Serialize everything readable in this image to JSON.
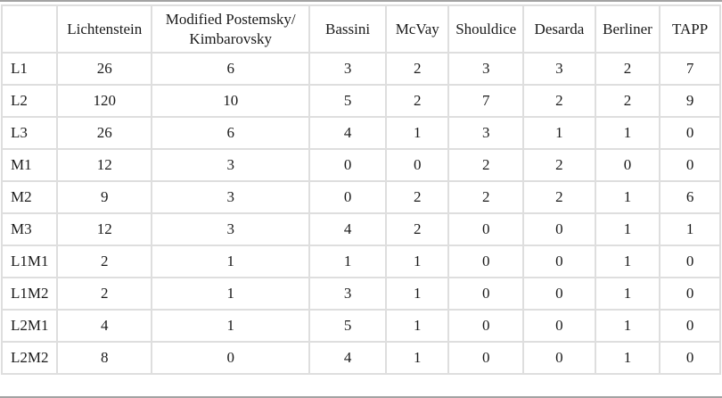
{
  "table": {
    "columns": [
      "",
      "Lichtenstein",
      "Modified Postemsky/ Kimbarovsky",
      "Bassini",
      "McVay",
      "Shouldice",
      "Desarda",
      "Berliner",
      "TAPP"
    ],
    "rows": [
      {
        "label": "L1",
        "values": [
          26,
          6,
          3,
          2,
          3,
          3,
          2,
          7
        ]
      },
      {
        "label": "L2",
        "values": [
          120,
          10,
          5,
          2,
          7,
          2,
          2,
          9
        ]
      },
      {
        "label": "L3",
        "values": [
          26,
          6,
          4,
          1,
          3,
          1,
          1,
          0
        ]
      },
      {
        "label": "M1",
        "values": [
          12,
          3,
          0,
          0,
          2,
          2,
          0,
          0
        ]
      },
      {
        "label": "M2",
        "values": [
          9,
          3,
          0,
          2,
          2,
          2,
          1,
          6
        ]
      },
      {
        "label": "M3",
        "values": [
          12,
          3,
          4,
          2,
          0,
          0,
          1,
          1
        ]
      },
      {
        "label": "L1M1",
        "values": [
          2,
          1,
          1,
          1,
          0,
          0,
          1,
          0
        ]
      },
      {
        "label": "L1M2",
        "values": [
          2,
          1,
          3,
          1,
          0,
          0,
          1,
          0
        ]
      },
      {
        "label": "L2M1",
        "values": [
          4,
          1,
          5,
          1,
          0,
          0,
          1,
          0
        ]
      },
      {
        "label": "L2M2",
        "values": [
          8,
          0,
          4,
          1,
          0,
          0,
          1,
          0
        ]
      }
    ]
  },
  "colors": {
    "grid_line": "#dedede",
    "frame_line": "#a3a3a3",
    "text": "#1a1a1a",
    "background": "#ffffff"
  }
}
